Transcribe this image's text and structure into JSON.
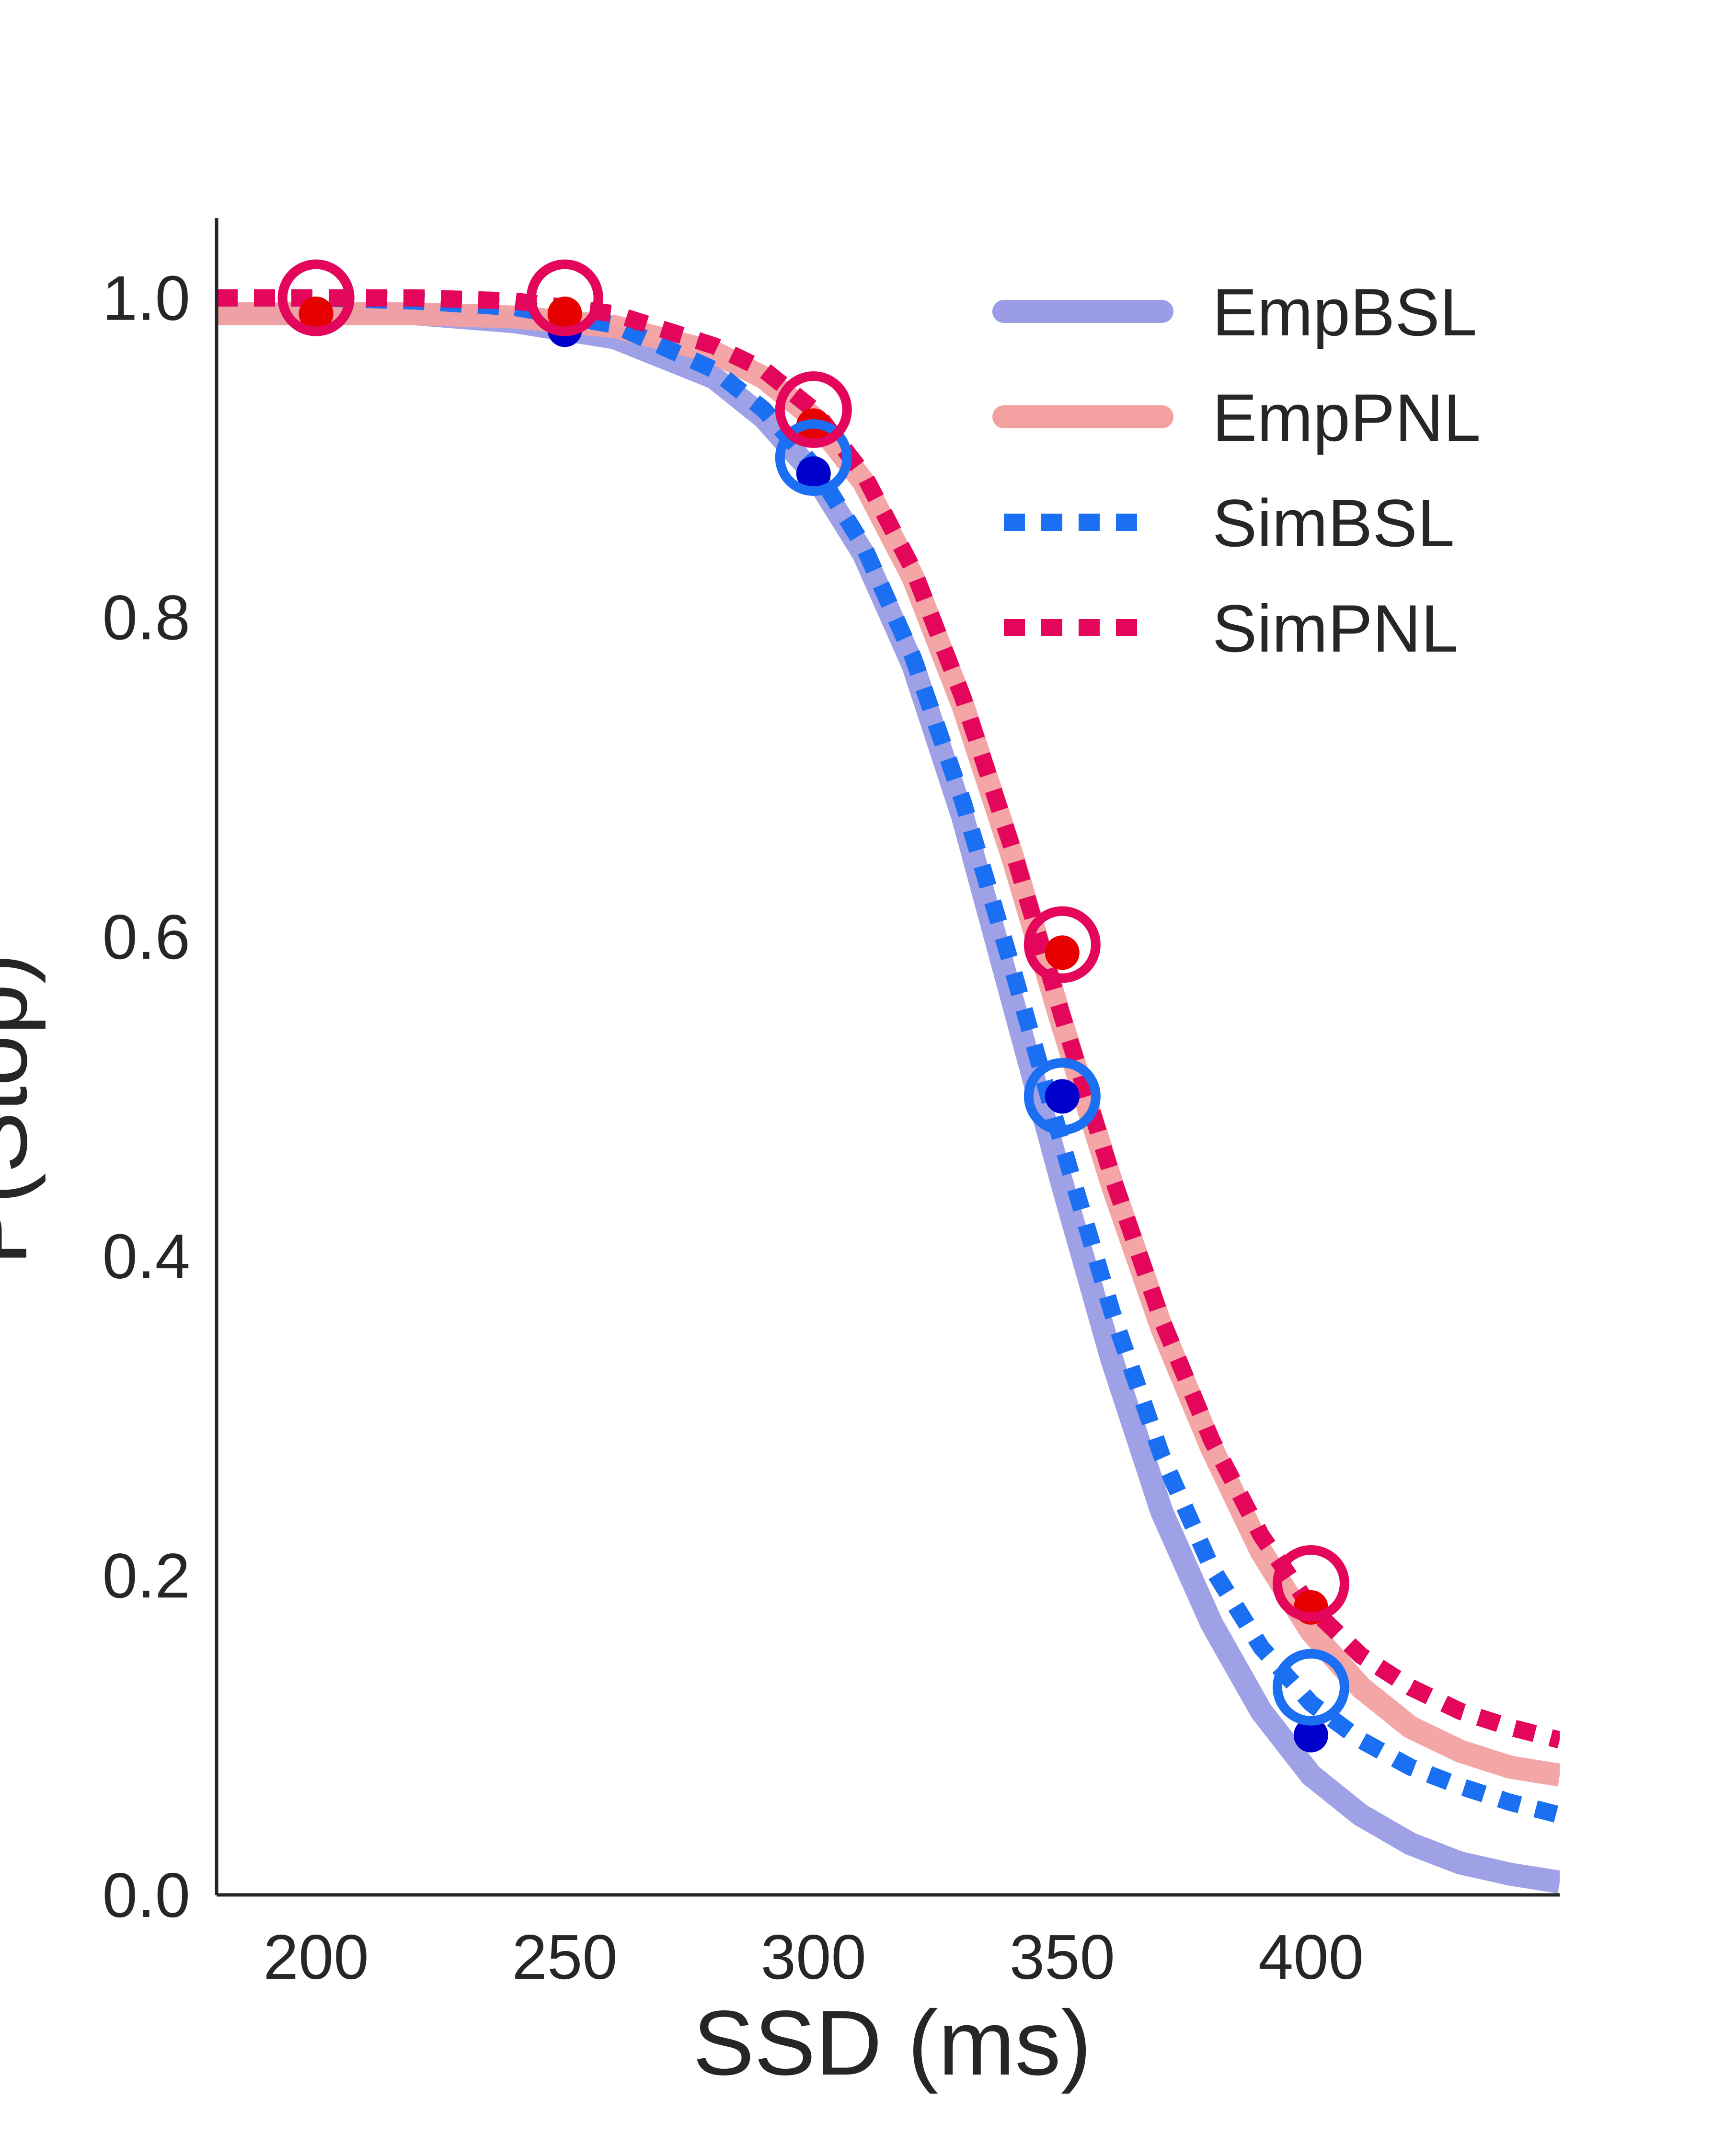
{
  "chart_data": {
    "type": "line",
    "xlabel": "SSD (ms)",
    "ylabel": "P(Stop)",
    "xlim": [
      180,
      450
    ],
    "ylim": [
      0.0,
      1.05
    ],
    "x_ticks": [
      {
        "value": 200,
        "label": "200"
      },
      {
        "value": 250,
        "label": "250"
      },
      {
        "value": 300,
        "label": "300"
      },
      {
        "value": 350,
        "label": "350"
      },
      {
        "value": 400,
        "label": "400"
      }
    ],
    "y_ticks": [
      {
        "value": 0.0,
        "label": "0.0"
      },
      {
        "value": 0.2,
        "label": "0.2"
      },
      {
        "value": 0.4,
        "label": "0.4"
      },
      {
        "value": 0.6,
        "label": "0.6"
      },
      {
        "value": 0.8,
        "label": "0.8"
      },
      {
        "value": 1.0,
        "label": "1.0"
      }
    ],
    "grid": false,
    "legend_position": "top-right",
    "series": [
      {
        "name": "EmpBSL",
        "kind": "fit",
        "style": "solid",
        "color": "#9a9ce6",
        "x": [
          180,
          200,
          220,
          240,
          260,
          280,
          290,
          300,
          310,
          320,
          330,
          340,
          350,
          360,
          370,
          380,
          390,
          400,
          410,
          420,
          430,
          440,
          450
        ],
        "y": [
          0.99,
          0.99,
          0.99,
          0.985,
          0.975,
          0.95,
          0.925,
          0.89,
          0.84,
          0.77,
          0.675,
          0.56,
          0.445,
          0.335,
          0.24,
          0.17,
          0.115,
          0.075,
          0.05,
          0.032,
          0.02,
          0.013,
          0.008
        ],
        "observed": {
          "x": [
            200,
            250,
            300,
            350,
            400
          ],
          "y": [
            0.99,
            0.98,
            0.89,
            0.5,
            0.1
          ],
          "color": "#0000cc"
        }
      },
      {
        "name": "EmpPNL",
        "kind": "fit",
        "style": "solid",
        "color": "#f3a0a0",
        "x": [
          180,
          200,
          220,
          240,
          260,
          280,
          290,
          300,
          310,
          320,
          330,
          340,
          350,
          360,
          370,
          380,
          390,
          400,
          410,
          420,
          430,
          440,
          450
        ],
        "y": [
          0.99,
          0.99,
          0.99,
          0.988,
          0.982,
          0.966,
          0.95,
          0.925,
          0.885,
          0.825,
          0.745,
          0.65,
          0.545,
          0.445,
          0.355,
          0.28,
          0.215,
          0.165,
          0.13,
          0.105,
          0.09,
          0.08,
          0.075
        ],
        "observed": {
          "x": [
            200,
            250,
            300,
            350,
            400
          ],
          "y": [
            0.99,
            0.99,
            0.92,
            0.59,
            0.18
          ],
          "color": "#e60000"
        }
      },
      {
        "name": "SimBSL",
        "kind": "simulation",
        "style": "dotted",
        "color": "#1a6ff2",
        "x": [
          180,
          200,
          220,
          240,
          260,
          280,
          290,
          300,
          310,
          320,
          330,
          340,
          350,
          360,
          370,
          380,
          390,
          400,
          410,
          420,
          430,
          440,
          450
        ],
        "y": [
          1.0,
          1.0,
          0.998,
          0.994,
          0.983,
          0.955,
          0.93,
          0.895,
          0.845,
          0.775,
          0.685,
          0.58,
          0.47,
          0.365,
          0.275,
          0.205,
          0.155,
          0.12,
          0.097,
          0.08,
          0.068,
          0.058,
          0.05
        ],
        "markers": {
          "x": [
            200,
            250,
            300,
            350,
            400
          ],
          "y": [
            1.0,
            1.0,
            0.9,
            0.5,
            0.13
          ]
        }
      },
      {
        "name": "SimPNL",
        "kind": "simulation",
        "style": "dotted",
        "color": "#e3065b",
        "x": [
          180,
          200,
          220,
          240,
          260,
          280,
          290,
          300,
          310,
          320,
          330,
          340,
          350,
          360,
          370,
          380,
          390,
          400,
          410,
          420,
          430,
          440,
          450
        ],
        "y": [
          1.0,
          1.0,
          1.0,
          0.998,
          0.99,
          0.97,
          0.955,
          0.93,
          0.89,
          0.83,
          0.75,
          0.655,
          0.55,
          0.45,
          0.36,
          0.285,
          0.225,
          0.18,
          0.15,
          0.13,
          0.115,
          0.105,
          0.097
        ],
        "markers": {
          "x": [
            200,
            250,
            300,
            350,
            400
          ],
          "y": [
            1.0,
            1.0,
            0.93,
            0.595,
            0.195
          ]
        }
      }
    ]
  }
}
